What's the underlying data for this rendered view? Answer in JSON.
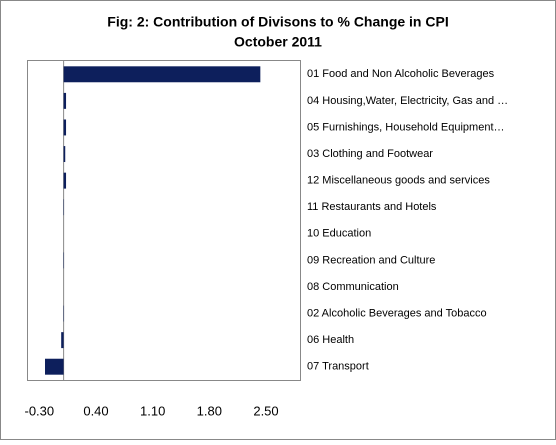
{
  "chart_data": {
    "type": "hbar",
    "title": [
      "Fig: 2: Contribution  of Divisons to % Change in CPI",
      "October 2011"
    ],
    "categories": [
      "01 Food and Non Alcoholic Beverages",
      "04 Housing,Water, Electricity,  Gas and …",
      "05 Furnishings, Household Equipment…",
      "03 Clothing and Footwear",
      "12 Miscellaneous goods and services",
      "11 Restaurants and Hotels",
      "10 Education",
      "09 Recreation and Culture",
      "08 Communication",
      "02 Alcoholic Beverages and Tobacco",
      "06 Health",
      "07 Transport"
    ],
    "values": [
      2.43,
      0.03,
      0.03,
      0.02,
      0.03,
      0.005,
      0,
      0.005,
      0,
      0.005,
      -0.03,
      -0.23
    ],
    "color": "#0d1f5c",
    "xlim": [
      -0.44,
      2.92
    ],
    "xticks": [
      {
        "value": -0.3,
        "label": "-0.30"
      },
      {
        "value": 0.4,
        "label": "0.40"
      },
      {
        "value": 1.1,
        "label": "1.10"
      },
      {
        "value": 1.8,
        "label": "1.80"
      },
      {
        "value": 2.5,
        "label": "2.50"
      }
    ]
  }
}
